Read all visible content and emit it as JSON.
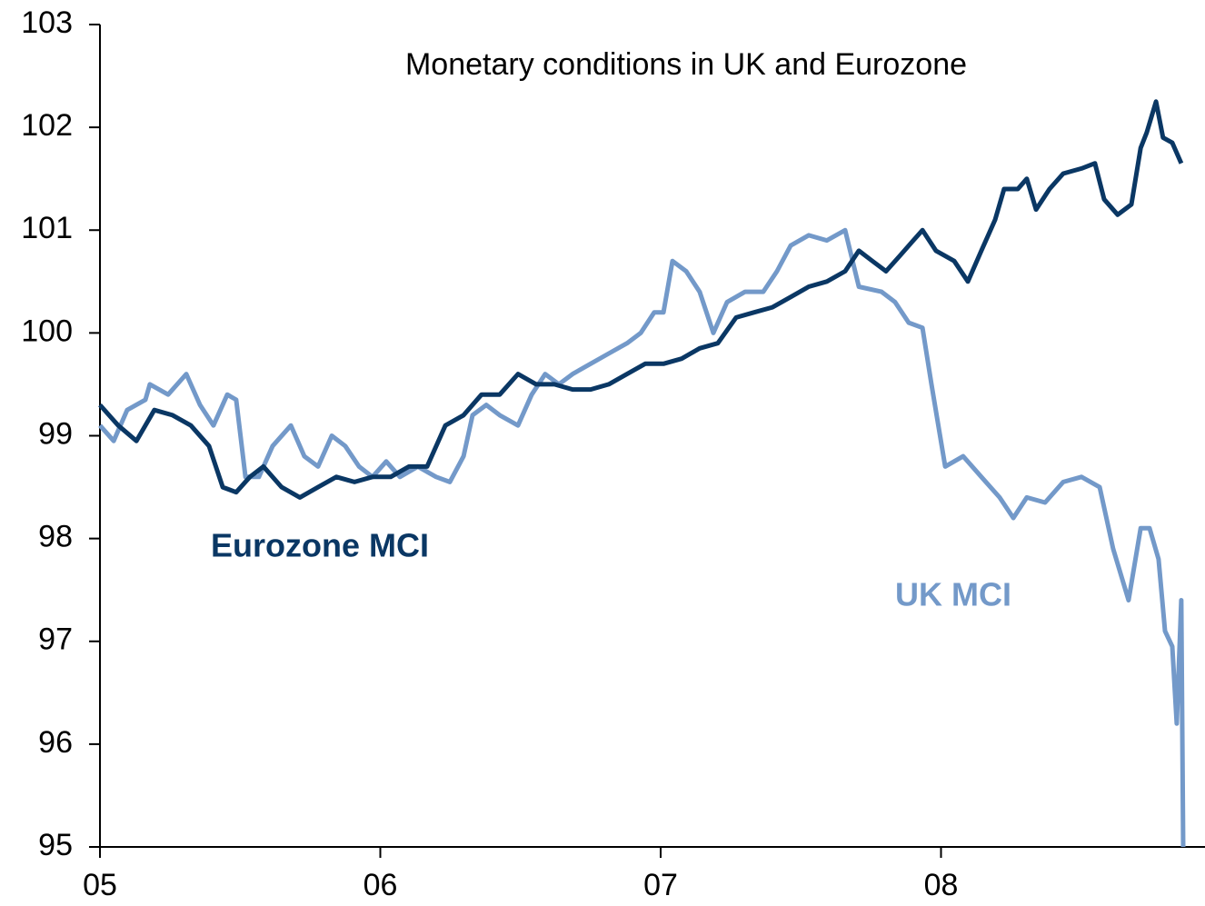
{
  "chart_data": {
    "type": "line",
    "title": "Monetary conditions in UK and Eurozone",
    "xlim": [
      2005,
      2008.95
    ],
    "xticks": [
      {
        "value": 2005,
        "label": "05"
      },
      {
        "value": 2006,
        "label": "06"
      },
      {
        "value": 2007,
        "label": "07"
      },
      {
        "value": 2008,
        "label": "08"
      }
    ],
    "ylim": [
      95,
      103
    ],
    "yticks": [
      95,
      96,
      97,
      98,
      99,
      100,
      101,
      102,
      103
    ],
    "grid": false,
    "series": [
      {
        "name": "Eurozone MCI",
        "color": "#0a3764",
        "x": [
          2005.0,
          2005.065,
          2005.13,
          2005.194,
          2005.259,
          2005.324,
          2005.389,
          2005.438,
          2005.486,
          2005.535,
          2005.583,
          2005.648,
          2005.713,
          2005.778,
          2005.843,
          2005.908,
          2005.972,
          2006.037,
          2006.102,
          2006.167,
          2006.232,
          2006.297,
          2006.361,
          2006.426,
          2006.491,
          2006.556,
          2006.621,
          2006.686,
          2006.75,
          2006.815,
          2006.88,
          2006.945,
          2007.01,
          2007.075,
          2007.139,
          2007.204,
          2007.269,
          2007.334,
          2007.399,
          2007.464,
          2007.528,
          2007.593,
          2007.658,
          2007.707,
          2007.755,
          2007.804,
          2007.853,
          2007.901,
          2007.934,
          2007.982,
          2008.047,
          2008.096,
          2008.144,
          2008.193,
          2008.225,
          2008.274,
          2008.306,
          2008.339,
          2008.387,
          2008.436,
          2008.501,
          2008.549,
          2008.582,
          2008.63,
          2008.679,
          2008.712,
          2008.734,
          2008.767,
          2008.792,
          2008.825,
          2008.857
        ],
        "values": [
          99.3,
          99.1,
          98.95,
          99.25,
          99.2,
          99.1,
          98.9,
          98.5,
          98.45,
          98.6,
          98.7,
          98.5,
          98.4,
          98.5,
          98.6,
          98.55,
          98.6,
          98.6,
          98.7,
          98.7,
          99.1,
          99.2,
          99.4,
          99.4,
          99.6,
          99.5,
          99.5,
          99.45,
          99.45,
          99.5,
          99.6,
          99.7,
          99.7,
          99.75,
          99.85,
          99.9,
          100.15,
          100.2,
          100.25,
          100.35,
          100.45,
          100.5,
          100.6,
          100.8,
          100.7,
          100.6,
          100.75,
          100.9,
          101.0,
          100.8,
          100.7,
          100.5,
          100.8,
          101.1,
          101.4,
          101.4,
          101.5,
          101.2,
          101.4,
          101.55,
          101.6,
          101.65,
          101.3,
          101.15,
          101.25,
          101.8,
          101.95,
          102.25,
          101.9,
          101.85,
          101.65
        ]
      },
      {
        "name": "UK MCI",
        "color": "#7399c9",
        "x": [
          2005.0,
          2005.049,
          2005.097,
          2005.162,
          2005.178,
          2005.243,
          2005.308,
          2005.357,
          2005.405,
          2005.454,
          2005.486,
          2005.519,
          2005.567,
          2005.616,
          2005.681,
          2005.729,
          2005.778,
          2005.827,
          2005.875,
          2005.924,
          2005.972,
          2006.021,
          2006.07,
          2006.134,
          2006.199,
          2006.248,
          2006.297,
          2006.329,
          2006.378,
          2006.426,
          2006.491,
          2006.54,
          2006.588,
          2006.637,
          2006.686,
          2006.75,
          2006.815,
          2006.88,
          2006.929,
          2006.977,
          2007.01,
          2007.042,
          2007.091,
          2007.139,
          2007.188,
          2007.237,
          2007.301,
          2007.366,
          2007.415,
          2007.464,
          2007.528,
          2007.593,
          2007.658,
          2007.707,
          2007.788,
          2007.836,
          2007.885,
          2007.934,
          2007.966,
          2008.015,
          2008.079,
          2008.144,
          2008.209,
          2008.258,
          2008.306,
          2008.371,
          2008.436,
          2008.501,
          2008.566,
          2008.614,
          2008.669,
          2008.712,
          2008.744,
          2008.776,
          2008.799,
          2008.825,
          2008.841,
          2008.857,
          2008.864
        ],
        "values": [
          99.1,
          98.95,
          99.25,
          99.35,
          99.5,
          99.4,
          99.6,
          99.3,
          99.1,
          99.4,
          99.35,
          98.6,
          98.6,
          98.9,
          99.1,
          98.8,
          98.7,
          99.0,
          98.9,
          98.7,
          98.6,
          98.75,
          98.6,
          98.7,
          98.6,
          98.55,
          98.8,
          99.2,
          99.3,
          99.2,
          99.1,
          99.4,
          99.6,
          99.5,
          99.6,
          99.7,
          99.8,
          99.9,
          100.0,
          100.2,
          100.2,
          100.7,
          100.6,
          100.4,
          100.0,
          100.3,
          100.4,
          100.4,
          100.6,
          100.85,
          100.95,
          100.9,
          101.0,
          100.45,
          100.4,
          100.3,
          100.1,
          100.05,
          99.5,
          98.7,
          98.8,
          98.6,
          98.4,
          98.2,
          98.4,
          98.35,
          98.55,
          98.6,
          98.5,
          97.9,
          97.4,
          98.1,
          98.1,
          97.8,
          97.1,
          96.95,
          96.2,
          97.4,
          95.0
        ]
      }
    ]
  }
}
